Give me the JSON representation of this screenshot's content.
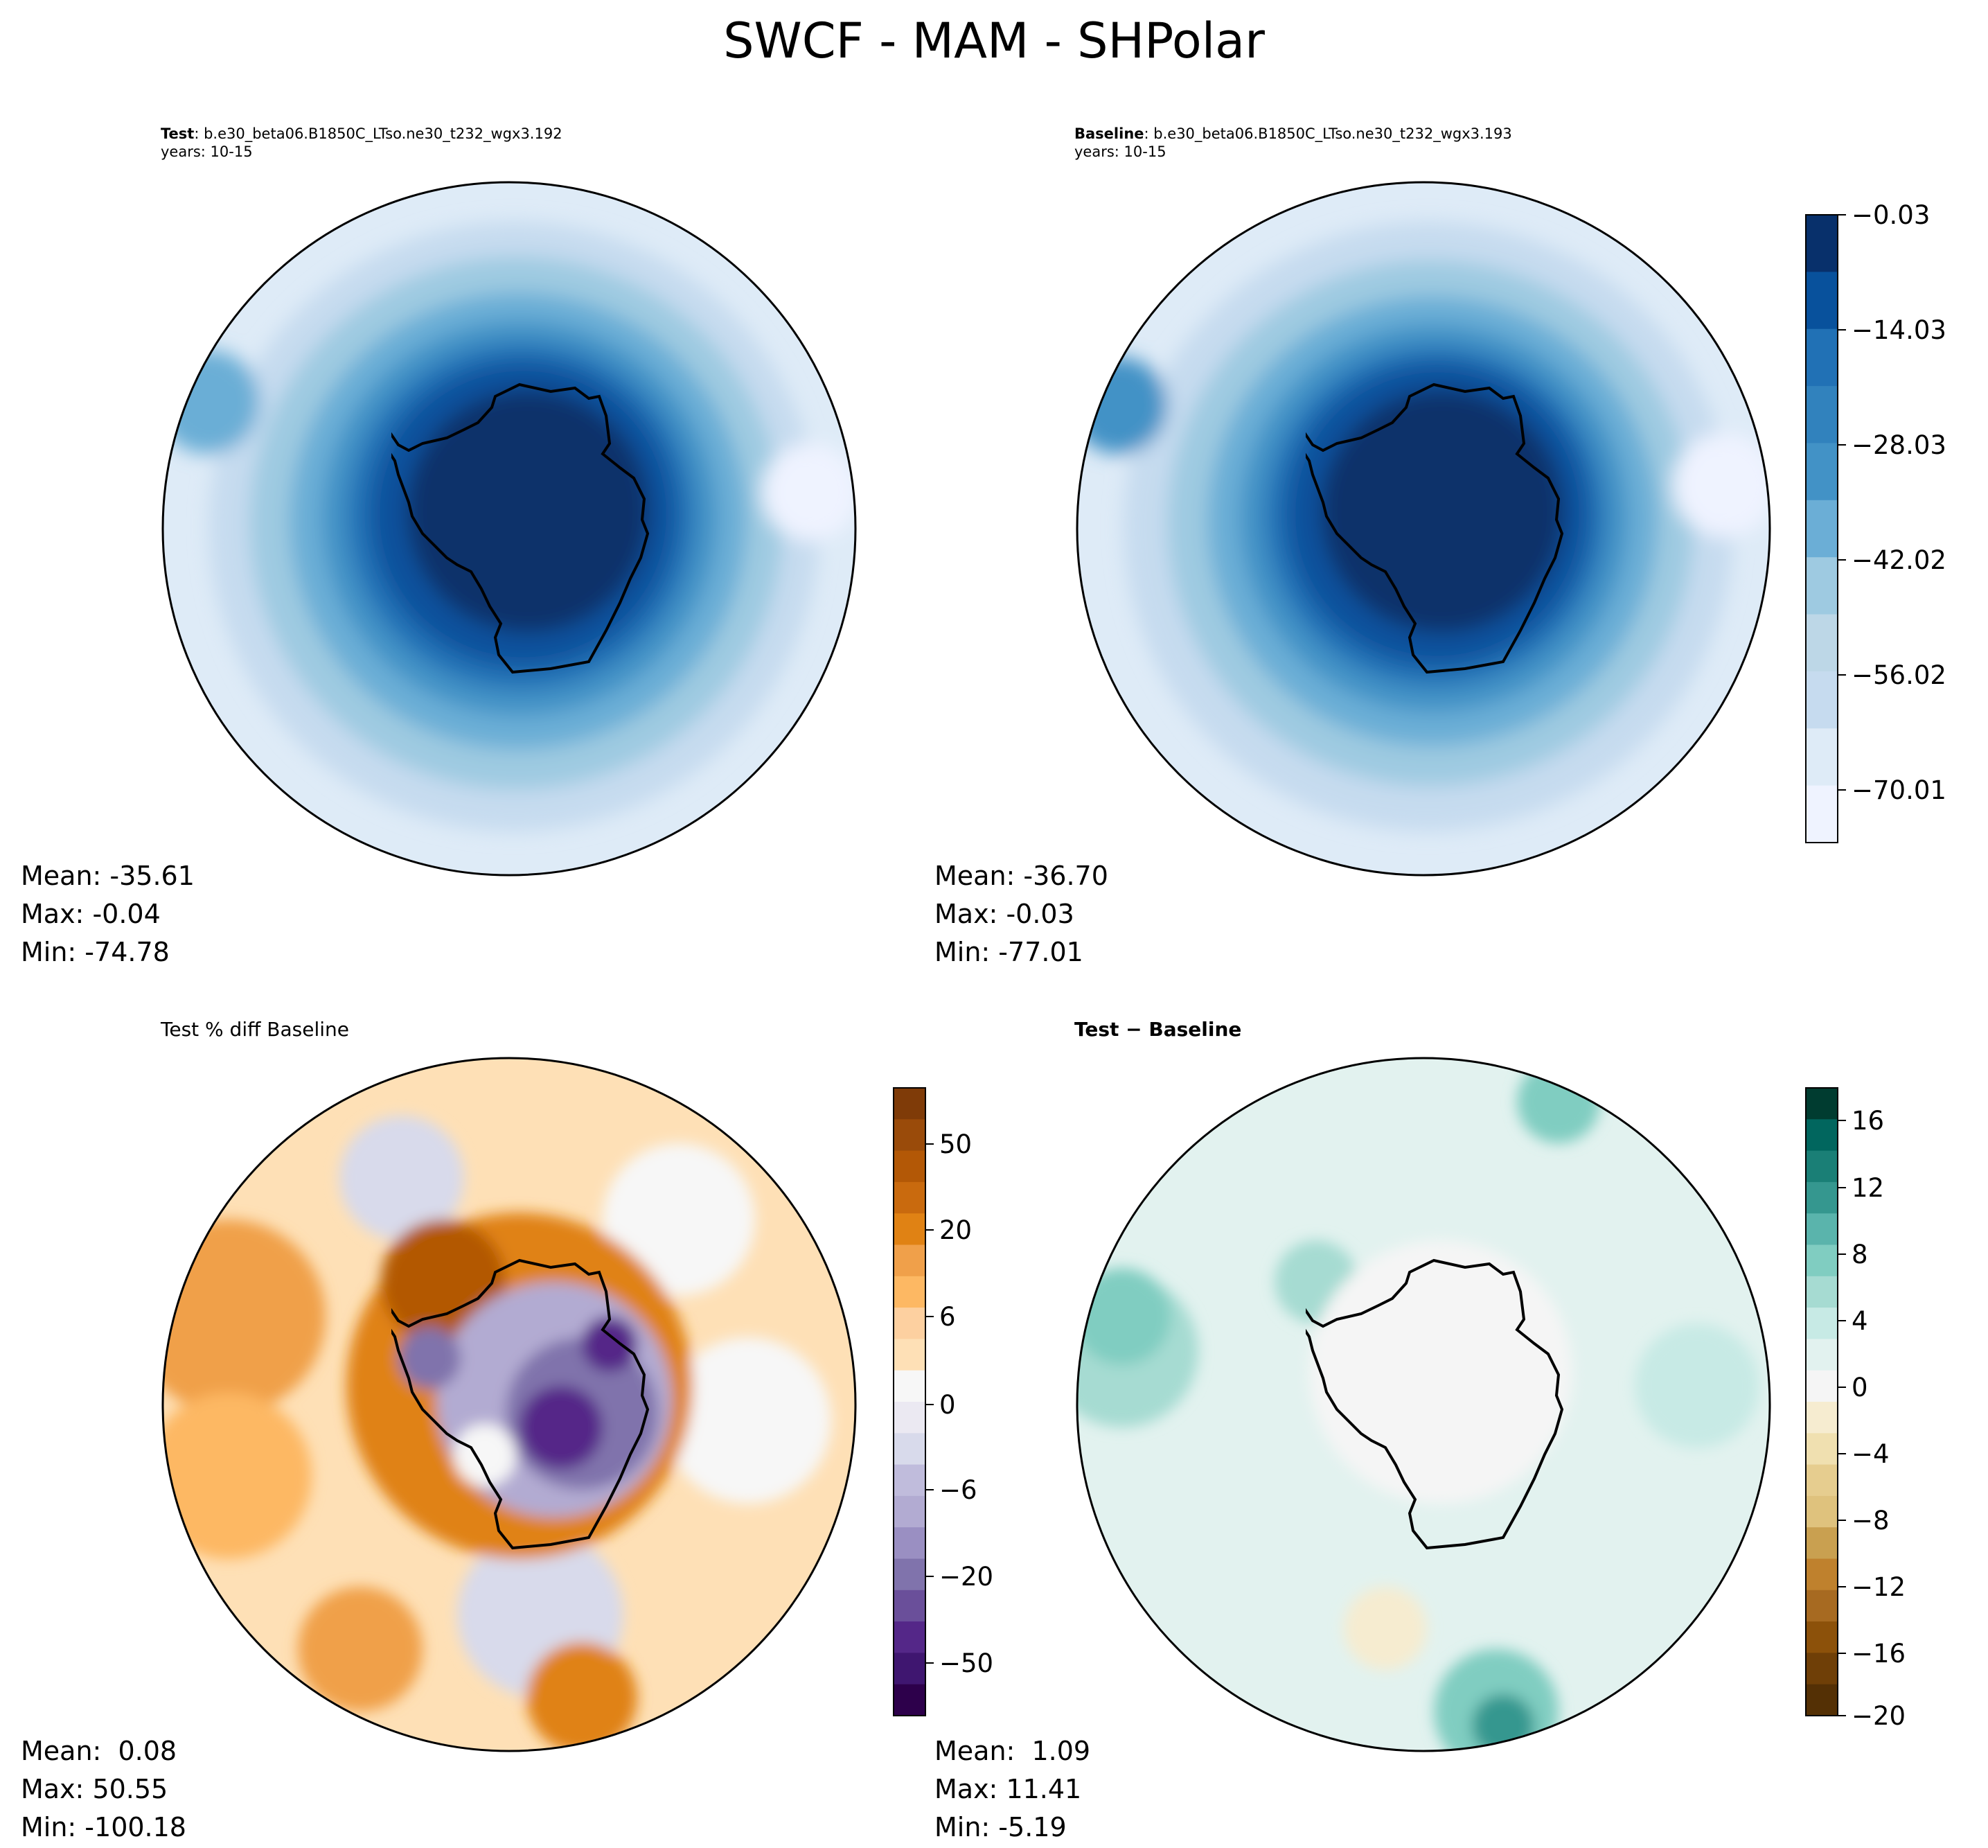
{
  "suptitle": "SWCF - MAM - SHPolar",
  "panels": {
    "test": {
      "label": "Test",
      "case": ": b.e30_beta06.B1850C_LTso.ne30_t232_wgx3.192",
      "years": "years: 10-15",
      "stats": {
        "mean": "Mean: -35.61",
        "max": "Max: -0.04",
        "min": "Min: -74.78"
      }
    },
    "baseline": {
      "label": "Baseline",
      "case": ": b.e30_beta06.B1850C_LTso.ne30_t232_wgx3.193",
      "years": "years: 10-15",
      "stats": {
        "mean": "Mean: -36.70",
        "max": "Max: -0.03",
        "min": "Min: -77.01"
      }
    },
    "pct_diff": {
      "title": "Test % diff Baseline",
      "stats": {
        "mean": "Mean:  0.08",
        "max": "Max: 50.55",
        "min": "Min: -100.18"
      }
    },
    "diff": {
      "title": "Test − Baseline",
      "stats": {
        "mean": "Mean:  1.09",
        "max": "Max: 11.41",
        "min": "Min: -5.19"
      }
    }
  },
  "chart_data": [
    {
      "type": "heatmap",
      "name": "climatology colorbar",
      "tick_labels": [
        "−0.03",
        "−14.03",
        "−28.03",
        "−42.02",
        "−56.02",
        "−70.01"
      ],
      "colors": [
        "#08306b",
        "#08519c",
        "#2171b5",
        "#3182bd",
        "#4292c6",
        "#6baed6",
        "#9ecae1",
        "#bdd7e7",
        "#c6dbef",
        "#deebf7",
        "#eff3ff"
      ]
    },
    {
      "type": "heatmap",
      "name": "percent difference colorbar",
      "tick_labels": [
        "50",
        "20",
        "6",
        "0",
        "−6",
        "−20",
        "−50"
      ],
      "colors": [
        "#7f3b08",
        "#9a4b0a",
        "#b35806",
        "#c96a0e",
        "#e08214",
        "#f0a04a",
        "#fdb863",
        "#fdd0a0",
        "#fee0b6",
        "#f7f7f7",
        "#ebe9f2",
        "#d8daeb",
        "#c0bcdc",
        "#b2abd2",
        "#9a8fc2",
        "#8073ac",
        "#6a4f9a",
        "#542788",
        "#3f1670",
        "#2d004b"
      ]
    },
    {
      "type": "heatmap",
      "name": "difference colorbar",
      "tick_labels": [
        "16",
        "12",
        "8",
        "4",
        "0",
        "−4",
        "−8",
        "−12",
        "−16",
        "−20"
      ],
      "colors": [
        "#003c30",
        "#01665e",
        "#1a7f76",
        "#35978f",
        "#5ab4ac",
        "#80cdc1",
        "#a6dbd2",
        "#c7eae5",
        "#e2f2ef",
        "#f5f5f5",
        "#f6ecd0",
        "#f0e0b0",
        "#e6cd8f",
        "#dfc27d",
        "#c9a050",
        "#bf812d",
        "#a76a21",
        "#8c510a",
        "#6f3f07",
        "#543005"
      ]
    }
  ]
}
